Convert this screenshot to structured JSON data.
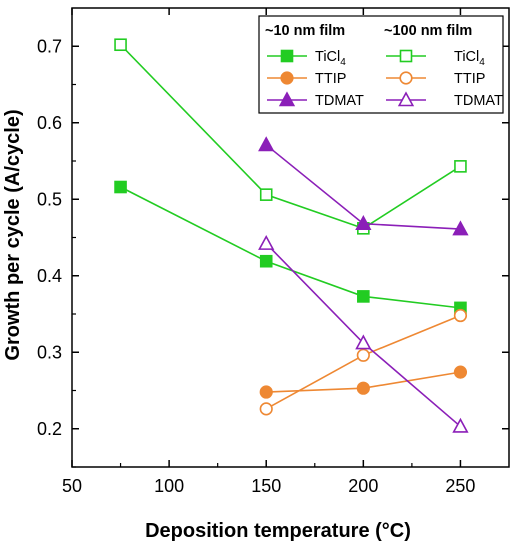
{
  "chart_data": {
    "type": "line",
    "xlabel": "Deposition temperature (°C)",
    "ylabel": "Growth per cycle (A/cycle)",
    "xlim": [
      50,
      275
    ],
    "ylim": [
      0.15,
      0.75
    ],
    "xticks": [
      50,
      100,
      150,
      200,
      250
    ],
    "yticks": [
      0.2,
      0.3,
      0.4,
      0.5,
      0.6,
      0.7
    ],
    "xtick_labels": [
      "50",
      "100",
      "150",
      "200",
      "250"
    ],
    "ytick_labels": [
      "0.2",
      "0.3",
      "0.4",
      "0.5",
      "0.6",
      "0.7"
    ],
    "grid": false,
    "legend_position": "top-right",
    "legend_groups": [
      {
        "heading": "~10 nm film",
        "entries": [
          {
            "series": 0,
            "label_main": "TiCl",
            "label_sub": "4"
          },
          {
            "series": 2,
            "label_main": "TTIP",
            "label_sub": ""
          },
          {
            "series": 4,
            "label_main": "TDMAT",
            "label_sub": ""
          }
        ]
      },
      {
        "heading": "~100 nm film",
        "entries": [
          {
            "series": 1,
            "label_main": "TiCl",
            "label_sub": "4"
          },
          {
            "series": 3,
            "label_main": "TTIP",
            "label_sub": ""
          },
          {
            "series": 5,
            "label_main": "TDMAT",
            "label_sub": ""
          }
        ]
      }
    ],
    "series": [
      {
        "name": "TiCl4",
        "film": "~10 nm film",
        "color": "#22cc22",
        "marker": "square",
        "filled": true,
        "x": [
          75,
          150,
          200,
          250
        ],
        "y": [
          0.516,
          0.419,
          0.373,
          0.358
        ]
      },
      {
        "name": "TiCl4",
        "film": "~100 nm film",
        "color": "#22cc22",
        "marker": "square",
        "filled": false,
        "x": [
          75,
          150,
          200,
          250
        ],
        "y": [
          0.702,
          0.506,
          0.462,
          0.543
        ]
      },
      {
        "name": "TTIP",
        "film": "~10 nm film",
        "color": "#ee8833",
        "marker": "circle",
        "filled": true,
        "x": [
          150,
          200,
          250
        ],
        "y": [
          0.248,
          0.253,
          0.274
        ]
      },
      {
        "name": "TTIP",
        "film": "~100 nm film",
        "color": "#ee8833",
        "marker": "circle",
        "filled": false,
        "x": [
          150,
          200,
          250
        ],
        "y": [
          0.226,
          0.296,
          0.348
        ]
      },
      {
        "name": "TDMAT",
        "film": "~10 nm film",
        "color": "#8b1fb8",
        "marker": "triangle",
        "filled": true,
        "x": [
          150,
          200,
          250
        ],
        "y": [
          0.571,
          0.468,
          0.461
        ]
      },
      {
        "name": "TDMAT",
        "film": "~100 nm film",
        "color": "#8b1fb8",
        "marker": "triangle",
        "filled": false,
        "x": [
          150,
          200,
          250
        ],
        "y": [
          0.442,
          0.312,
          0.203
        ]
      }
    ]
  }
}
